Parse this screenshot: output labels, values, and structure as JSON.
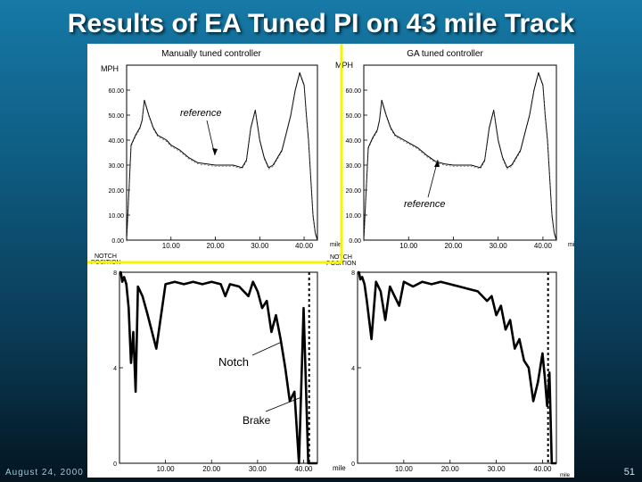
{
  "slide": {
    "title": "Results of EA Tuned PI on 43 mile Track",
    "date": "August 24, 2000",
    "page_number": "51"
  },
  "panels": {
    "left_title": "Manually  tuned  controller",
    "right_title": "GA  tuned  controller",
    "speed_unit": "MPH",
    "notch_label_line1": "NOTCH",
    "notch_label_line2": "POSITION",
    "x_unit": "mile",
    "annotation_reference": "reference",
    "annotation_notch": "Notch",
    "annotation_brake": "Brake"
  },
  "colors": {
    "background_top": "#1679a6",
    "background_bottom": "#041520",
    "highlight": "#f5f500"
  },
  "chart_data": [
    {
      "type": "line",
      "title": "Manually  tuned  controller",
      "ylabel": "MPH",
      "xlabel": "mile",
      "xlim": [
        0,
        43
      ],
      "ylim": [
        0,
        70
      ],
      "yticks": [
        "0.00",
        "10.00",
        "20.00",
        "30.00",
        "40.00",
        "50.00",
        "60.00"
      ],
      "xticks": [
        "10.00",
        "20.00",
        "30.00",
        "40.00"
      ],
      "series": [
        {
          "x": [
            0,
            0.4,
            1,
            2,
            3,
            3.5,
            4,
            5,
            6,
            7,
            8,
            9,
            10,
            12,
            14,
            16,
            18,
            20,
            22,
            24,
            26,
            27,
            28,
            29,
            30,
            31,
            32,
            33,
            35,
            36,
            37,
            38,
            39,
            40,
            40.5,
            41,
            41.5,
            42,
            42.5,
            43
          ],
          "y": [
            0,
            15,
            38,
            42,
            45,
            48,
            56,
            50,
            45,
            42,
            41,
            40,
            38,
            36,
            33,
            31,
            30.5,
            30,
            30,
            30,
            29,
            32,
            45,
            52,
            40,
            33,
            29,
            30,
            36,
            43,
            50,
            60,
            67,
            62,
            50,
            40,
            25,
            10,
            3,
            0
          ]
        }
      ]
    },
    {
      "type": "line",
      "title": "GA  tuned  controller",
      "ylabel": "MPH",
      "xlabel": "mile",
      "xlim": [
        0,
        43
      ],
      "ylim": [
        0,
        70
      ],
      "yticks": [
        "0.00",
        "10.00",
        "20.00",
        "30.00",
        "40.00",
        "50.00",
        "60.00"
      ],
      "xticks": [
        "10.00",
        "20.00",
        "30.00",
        "40.00"
      ],
      "series": [
        {
          "x": [
            0,
            0.4,
            1,
            2,
            3,
            3.5,
            4,
            5,
            6,
            7,
            8,
            9,
            10,
            12,
            14,
            16,
            18,
            20,
            22,
            24,
            26,
            27,
            28,
            29,
            30,
            31,
            32,
            33,
            35,
            36,
            37,
            38,
            39,
            40,
            40.5,
            41,
            41.5,
            42,
            42.5,
            43
          ],
          "y": [
            0,
            15,
            37,
            41,
            44,
            48,
            56,
            50,
            45,
            42,
            41,
            40,
            39,
            37,
            34,
            31.5,
            30.5,
            30,
            30,
            30,
            29,
            32,
            45,
            52,
            40,
            33,
            29,
            30,
            36,
            43,
            50,
            60,
            67,
            62,
            50,
            40,
            25,
            10,
            3,
            0
          ]
        }
      ]
    },
    {
      "type": "line",
      "title": "",
      "ylabel": "NOTCH POSITION",
      "xlabel": "mile",
      "xlim": [
        0,
        43
      ],
      "ylim": [
        0,
        8
      ],
      "yticks": [
        "0",
        "4",
        "8"
      ],
      "xticks": [
        "10.00",
        "20.00",
        "30.00",
        "40.00"
      ],
      "series": [
        {
          "x": [
            0,
            0.3,
            0.6,
            1,
            1.5,
            2,
            2.5,
            3,
            3.5,
            4,
            5,
            6,
            8,
            10,
            12,
            14,
            16,
            18,
            20,
            22,
            23,
            24,
            26,
            28,
            29,
            30,
            31,
            32,
            33,
            34,
            35,
            36,
            37,
            38,
            39,
            40,
            41,
            42,
            43
          ],
          "y": [
            8,
            8,
            7.6,
            7.8,
            7.5,
            6.5,
            4.2,
            5.5,
            3.0,
            7.4,
            7.0,
            6.3,
            4.8,
            7.5,
            7.6,
            7.5,
            7.6,
            7.5,
            7.6,
            7.5,
            7.0,
            7.5,
            7.4,
            7.0,
            7.6,
            7.2,
            6.5,
            6.8,
            5.5,
            6.2,
            5.2,
            4.0,
            2.6,
            3.0,
            0,
            6.5,
            0,
            0,
            0
          ]
        }
      ]
    },
    {
      "type": "line",
      "title": "",
      "ylabel": "NOTCH POSITION",
      "xlabel": "mile",
      "xlim": [
        0,
        43
      ],
      "ylim": [
        0,
        8
      ],
      "yticks": [
        "0",
        "4",
        "8"
      ],
      "xticks": [
        "10.00",
        "20.00",
        "30.00",
        "40.00"
      ],
      "series": [
        {
          "x": [
            0,
            0.3,
            0.6,
            1,
            1.5,
            2,
            3,
            4,
            5,
            6,
            7,
            8,
            9,
            10,
            12,
            14,
            16,
            18,
            20,
            22,
            24,
            26,
            28,
            29,
            30,
            31,
            32,
            33,
            34,
            35,
            36,
            37,
            38,
            39,
            40,
            40.5,
            41,
            41.5,
            42,
            43
          ],
          "y": [
            8,
            8,
            7.7,
            7.8,
            7.5,
            6.8,
            5.2,
            7.6,
            7.2,
            6.0,
            7.4,
            7.0,
            6.6,
            7.6,
            7.4,
            7.6,
            7.5,
            7.6,
            7.5,
            7.4,
            7.3,
            7.2,
            6.8,
            7.0,
            6.2,
            6.6,
            5.6,
            6.0,
            4.8,
            5.2,
            4.3,
            4.0,
            2.6,
            3.4,
            4.6,
            3.6,
            2.4,
            3.8,
            0,
            0
          ]
        }
      ]
    }
  ]
}
